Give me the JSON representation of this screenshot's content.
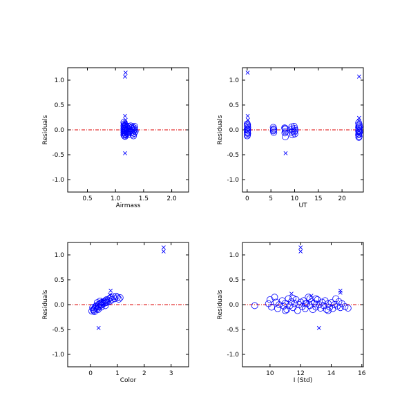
{
  "chart_data": [
    {
      "type": "scatter",
      "title": "",
      "xlabel": "Airmass",
      "ylabel": "Residuals",
      "xlim": [
        0.15,
        2.3
      ],
      "ylim": [
        -1.25,
        1.25
      ],
      "xticks": [
        0.5,
        1.0,
        1.5,
        2.0
      ],
      "xtick_labels": [
        "0.5",
        "1.0",
        "1.5",
        "2.0"
      ],
      "yticks": [
        -1.0,
        -0.5,
        0.0,
        0.5,
        1.0
      ],
      "ytick_labels": [
        "-1.0",
        "-0.5",
        "0.0",
        "0.5",
        "1.0"
      ],
      "reference_line_y": 0.0,
      "grid": false,
      "legend": "none",
      "series": [
        {
          "marker": "circle",
          "points": [
            [
              1.15,
              0.15
            ],
            [
              1.16,
              0.12
            ],
            [
              1.17,
              0.1
            ],
            [
              1.15,
              0.08
            ],
            [
              1.16,
              0.06
            ],
            [
              1.17,
              0.05
            ],
            [
              1.15,
              0.03
            ],
            [
              1.16,
              0.02
            ],
            [
              1.17,
              0.0
            ],
            [
              1.15,
              -0.01
            ],
            [
              1.16,
              -0.02
            ],
            [
              1.17,
              -0.03
            ],
            [
              1.15,
              -0.05
            ],
            [
              1.16,
              -0.06
            ],
            [
              1.17,
              -0.08
            ],
            [
              1.15,
              -0.1
            ],
            [
              1.16,
              -0.12
            ],
            [
              1.17,
              -0.13
            ],
            [
              1.18,
              0.09
            ],
            [
              1.18,
              0.03
            ],
            [
              1.18,
              -0.04
            ],
            [
              1.18,
              -0.1
            ],
            [
              1.21,
              0.05
            ],
            [
              1.22,
              0.02
            ],
            [
              1.21,
              -0.01
            ],
            [
              1.22,
              -0.04
            ],
            [
              1.21,
              -0.07
            ],
            [
              1.23,
              0.07
            ],
            [
              1.23,
              -0.09
            ],
            [
              1.27,
              0.08
            ],
            [
              1.28,
              0.04
            ],
            [
              1.29,
              0.01
            ],
            [
              1.27,
              -0.02
            ],
            [
              1.28,
              -0.05
            ],
            [
              1.3,
              0.06
            ],
            [
              1.31,
              0.02
            ],
            [
              1.32,
              -0.01
            ],
            [
              1.3,
              -0.05
            ],
            [
              1.31,
              -0.09
            ],
            [
              1.32,
              -0.12
            ],
            [
              1.33,
              0.04
            ],
            [
              1.34,
              0.0
            ],
            [
              1.35,
              -0.03
            ],
            [
              1.33,
              -0.07
            ],
            [
              1.34,
              0.07
            ]
          ]
        },
        {
          "marker": "x",
          "points": [
            [
              1.18,
              1.15
            ],
            [
              1.17,
              1.07
            ],
            [
              1.17,
              0.28
            ],
            [
              1.18,
              0.2
            ],
            [
              1.17,
              0.15
            ],
            [
              1.18,
              0.12
            ],
            [
              1.19,
              0.05
            ],
            [
              1.17,
              -0.03
            ],
            [
              1.17,
              -0.47
            ]
          ]
        }
      ]
    },
    {
      "type": "scatter",
      "title": "",
      "xlabel": "UT",
      "ylabel": "Residuals",
      "xlim": [
        -1,
        24.5
      ],
      "ylim": [
        -1.25,
        1.25
      ],
      "xticks": [
        0,
        5,
        10,
        15,
        20
      ],
      "xtick_labels": [
        "0",
        "5",
        "10",
        "15",
        "20"
      ],
      "yticks": [
        -1.0,
        -0.5,
        0.0,
        0.5,
        1.0
      ],
      "ytick_labels": [
        "-1.0",
        "-0.5",
        "0.0",
        "0.5",
        "1.0"
      ],
      "reference_line_y": 0.0,
      "grid": false,
      "legend": "none",
      "series": [
        {
          "marker": "circle",
          "points": [
            [
              0.0,
              0.12
            ],
            [
              0.05,
              0.08
            ],
            [
              0.1,
              0.05
            ],
            [
              0.0,
              0.02
            ],
            [
              0.08,
              -0.01
            ],
            [
              0.02,
              -0.04
            ],
            [
              0.1,
              -0.07
            ],
            [
              0.05,
              -0.1
            ],
            [
              0.0,
              -0.12
            ],
            [
              0.12,
              0.0
            ],
            [
              0.07,
              0.1
            ],
            [
              0.03,
              -0.06
            ],
            [
              5.5,
              0.05
            ],
            [
              5.6,
              0.02
            ],
            [
              5.5,
              -0.02
            ],
            [
              5.6,
              -0.05
            ],
            [
              5.55,
              0.0
            ],
            [
              7.9,
              0.04
            ],
            [
              8.0,
              0.01
            ],
            [
              8.1,
              -0.03
            ],
            [
              7.95,
              -0.06
            ],
            [
              8.05,
              -0.14
            ],
            [
              8.0,
              0.03
            ],
            [
              9.4,
              0.06
            ],
            [
              9.5,
              0.02
            ],
            [
              9.6,
              -0.02
            ],
            [
              9.45,
              -0.05
            ],
            [
              9.55,
              -0.1
            ],
            [
              9.9,
              0.07
            ],
            [
              10.0,
              0.03
            ],
            [
              10.1,
              -0.01
            ],
            [
              9.95,
              -0.04
            ],
            [
              10.05,
              -0.08
            ],
            [
              23.5,
              0.14
            ],
            [
              23.6,
              0.11
            ],
            [
              23.55,
              0.08
            ],
            [
              23.5,
              0.05
            ],
            [
              23.6,
              0.03
            ],
            [
              23.55,
              0.0
            ],
            [
              23.5,
              -0.02
            ],
            [
              23.6,
              -0.05
            ],
            [
              23.55,
              -0.08
            ],
            [
              23.5,
              -0.1
            ],
            [
              23.6,
              -0.13
            ],
            [
              23.55,
              -0.15
            ],
            [
              23.7,
              0.06
            ],
            [
              23.7,
              -0.04
            ]
          ]
        },
        {
          "marker": "x",
          "points": [
            [
              0.1,
              1.15
            ],
            [
              0.1,
              0.28
            ],
            [
              0.15,
              0.2
            ],
            [
              0.1,
              0.1
            ],
            [
              0.12,
              -0.02
            ],
            [
              8.1,
              -0.47
            ],
            [
              23.6,
              1.07
            ],
            [
              23.6,
              0.24
            ],
            [
              23.55,
              0.18
            ],
            [
              23.6,
              -0.1
            ]
          ]
        }
      ]
    },
    {
      "type": "scatter",
      "title": "",
      "xlabel": "Color",
      "ylabel": "Residuals",
      "xlim": [
        -0.85,
        3.65
      ],
      "ylim": [
        -1.25,
        1.25
      ],
      "xticks": [
        0,
        1,
        2,
        3
      ],
      "xtick_labels": [
        "0",
        "1",
        "2",
        "3"
      ],
      "yticks": [
        -1.0,
        -0.5,
        0.0,
        0.5,
        1.0
      ],
      "ytick_labels": [
        "-1.0",
        "-0.5",
        "0.0",
        "0.5",
        "1.0"
      ],
      "reference_line_y": 0.0,
      "grid": false,
      "legend": "none",
      "series": [
        {
          "marker": "circle",
          "points": [
            [
              0.05,
              -0.13
            ],
            [
              0.1,
              -0.1
            ],
            [
              0.08,
              -0.06
            ],
            [
              0.15,
              -0.08
            ],
            [
              0.18,
              -0.04
            ],
            [
              0.12,
              -0.12
            ],
            [
              0.2,
              -0.06
            ],
            [
              0.22,
              -0.02
            ],
            [
              0.25,
              -0.08
            ],
            [
              0.28,
              -0.03
            ],
            [
              0.3,
              0.0
            ],
            [
              0.32,
              -0.05
            ],
            [
              0.35,
              0.02
            ],
            [
              0.38,
              -0.01
            ],
            [
              0.4,
              0.04
            ],
            [
              0.42,
              0.0
            ],
            [
              0.45,
              0.05
            ],
            [
              0.48,
              0.02
            ],
            [
              0.5,
              0.06
            ],
            [
              0.52,
              0.03
            ],
            [
              0.55,
              0.08
            ],
            [
              0.58,
              0.04
            ],
            [
              0.6,
              0.1
            ],
            [
              0.62,
              0.05
            ],
            [
              0.65,
              0.09
            ],
            [
              0.7,
              0.12
            ],
            [
              0.72,
              0.07
            ],
            [
              0.75,
              0.14
            ],
            [
              0.8,
              0.1
            ],
            [
              0.85,
              0.16
            ],
            [
              0.9,
              0.12
            ],
            [
              0.95,
              0.17
            ],
            [
              1.0,
              0.15
            ],
            [
              1.05,
              0.11
            ],
            [
              1.1,
              0.14
            ],
            [
              0.15,
              -0.14
            ],
            [
              0.28,
              -0.1
            ],
            [
              0.4,
              -0.05
            ],
            [
              0.35,
              0.07
            ],
            [
              0.55,
              -0.02
            ],
            [
              0.25,
              0.04
            ]
          ]
        },
        {
          "marker": "x",
          "points": [
            [
              2.72,
              1.15
            ],
            [
              2.72,
              1.07
            ],
            [
              0.75,
              0.28
            ],
            [
              0.72,
              0.2
            ],
            [
              0.45,
              0.1
            ],
            [
              0.3,
              -0.47
            ]
          ]
        }
      ]
    },
    {
      "type": "scatter",
      "title": "",
      "xlabel": "I (Std)",
      "ylabel": "Residuals",
      "xlim": [
        8.2,
        16.1
      ],
      "ylim": [
        -1.25,
        1.25
      ],
      "xticks": [
        10,
        12,
        14,
        16
      ],
      "xtick_labels": [
        "10",
        "12",
        "14",
        "16"
      ],
      "yticks": [
        -1.0,
        -0.5,
        0.0,
        0.5,
        1.0
      ],
      "ytick_labels": [
        "-1.0",
        "-0.5",
        "0.0",
        "0.5",
        "1.0"
      ],
      "reference_line_y": 0.0,
      "grid": false,
      "legend": "none",
      "series": [
        {
          "marker": "circle",
          "points": [
            [
              9.0,
              -0.02
            ],
            [
              9.9,
              0.02
            ],
            [
              10.1,
              -0.05
            ],
            [
              10.3,
              0.15
            ],
            [
              10.4,
              0.05
            ],
            [
              10.5,
              -0.08
            ],
            [
              10.6,
              0.0
            ],
            [
              10.8,
              0.08
            ],
            [
              10.9,
              -0.03
            ],
            [
              11.0,
              0.03
            ],
            [
              11.1,
              -0.1
            ],
            [
              11.2,
              0.12
            ],
            [
              11.3,
              -0.02
            ],
            [
              11.4,
              0.06
            ],
            [
              11.5,
              -0.06
            ],
            [
              11.6,
              0.02
            ],
            [
              11.7,
              0.1
            ],
            [
              11.8,
              -0.12
            ],
            [
              11.9,
              0.0
            ],
            [
              12.0,
              0.05
            ],
            [
              12.1,
              -0.04
            ],
            [
              12.2,
              0.08
            ],
            [
              12.3,
              -0.08
            ],
            [
              12.4,
              0.02
            ],
            [
              12.5,
              0.15
            ],
            [
              12.6,
              -0.02
            ],
            [
              12.7,
              0.06
            ],
            [
              12.8,
              -0.1
            ],
            [
              12.9,
              0.03
            ],
            [
              13.0,
              -0.05
            ],
            [
              13.1,
              0.1
            ],
            [
              13.2,
              0.0
            ],
            [
              13.3,
              -0.07
            ],
            [
              13.4,
              0.05
            ],
            [
              13.5,
              -0.02
            ],
            [
              13.6,
              0.08
            ],
            [
              13.7,
              -0.1
            ],
            [
              13.8,
              0.02
            ],
            [
              13.9,
              -0.05
            ],
            [
              14.0,
              0.04
            ],
            [
              14.1,
              -0.08
            ],
            [
              14.2,
              0.0
            ],
            [
              14.3,
              0.12
            ],
            [
              14.4,
              -0.03
            ],
            [
              14.5,
              0.06
            ],
            [
              14.6,
              -0.06
            ],
            [
              14.7,
              0.02
            ],
            [
              14.9,
              -0.04
            ],
            [
              15.1,
              -0.07
            ],
            [
              10.0,
              0.1
            ],
            [
              11.5,
              0.13
            ],
            [
              12.3,
              0.02
            ],
            [
              13.0,
              0.12
            ],
            [
              13.8,
              -0.12
            ],
            [
              12.6,
              0.12
            ],
            [
              11.0,
              -0.12
            ]
          ]
        },
        {
          "marker": "x",
          "points": [
            [
              12.0,
              1.15
            ],
            [
              12.0,
              1.07
            ],
            [
              11.4,
              0.22
            ],
            [
              12.7,
              0.18
            ],
            [
              14.6,
              0.28
            ],
            [
              14.6,
              0.24
            ],
            [
              13.2,
              -0.47
            ]
          ]
        }
      ]
    }
  ],
  "colors": {
    "markers": "#0000ff",
    "reference_line": "#dd0000",
    "frame": "#000000"
  }
}
